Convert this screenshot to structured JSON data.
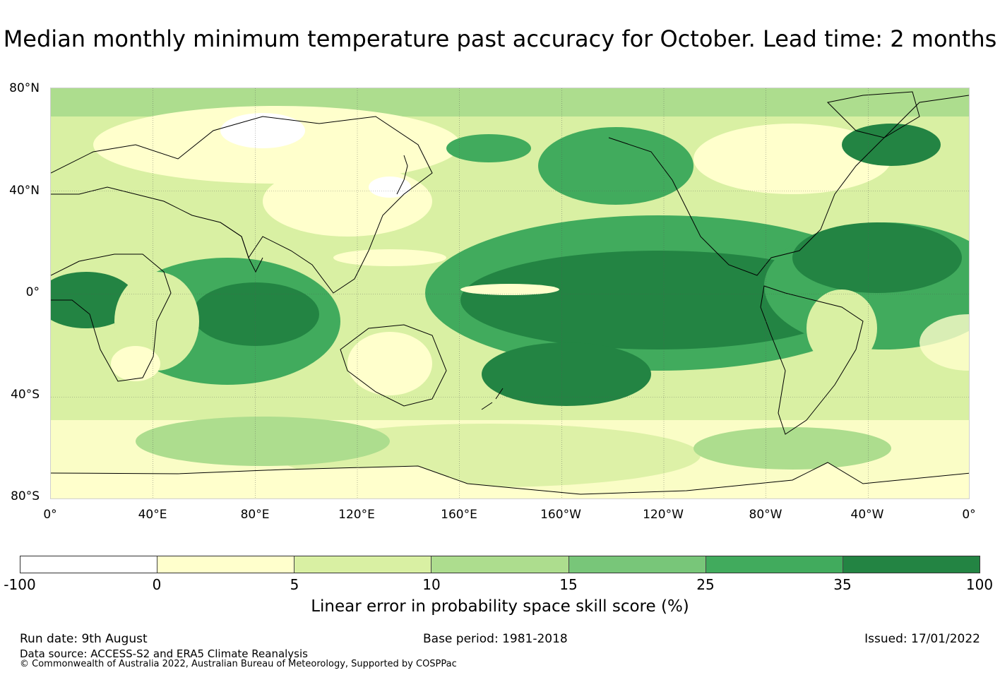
{
  "title": "Median monthly minimum temperature past accuracy for October. Lead time: 2 months",
  "map": {
    "lat_ticks": [
      "80°N",
      "40°N",
      "0°",
      "40°S",
      "80°S"
    ],
    "lon_ticks": [
      "0°",
      "40°E",
      "80°E",
      "120°E",
      "160°E",
      "160°W",
      "120°W",
      "80°W",
      "40°W",
      "0°"
    ]
  },
  "colorbar": {
    "ticks": [
      "-100",
      "0",
      "5",
      "10",
      "15",
      "25",
      "35",
      "100"
    ],
    "colors": [
      "#ffffff",
      "#ffffcc",
      "#d9f0a3",
      "#addd8e",
      "#78c679",
      "#41ab5d",
      "#238443"
    ],
    "label": "Linear error in probability space skill score (%)"
  },
  "footer": {
    "run_date": "Run date: 9th August",
    "base_period": "Base period: 1981-2018",
    "issued": "Issued: 17/01/2022",
    "data_source": "Data source: ACCESS-S2 and ERA5 Climate Reanalysis",
    "copyright": "© Commonwealth of Australia 2022, Australian Bureau of Meteorology, Supported by COSPPac"
  }
}
